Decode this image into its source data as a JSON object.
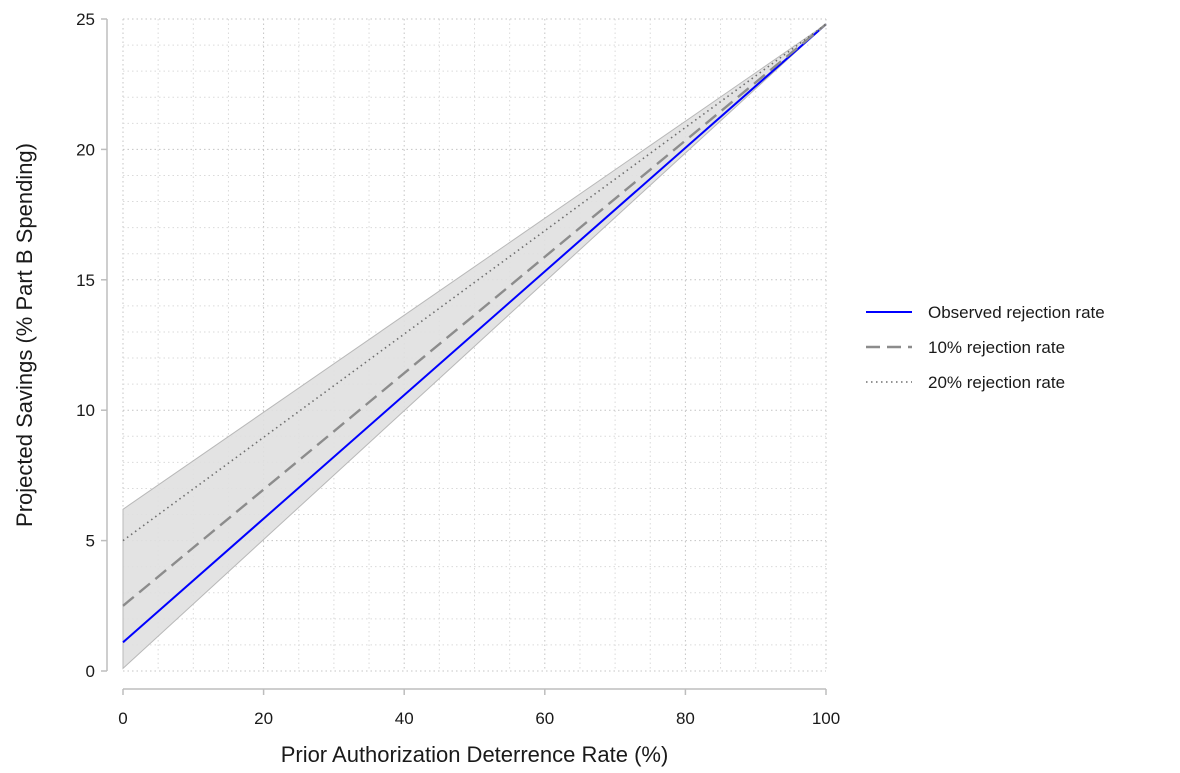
{
  "chart_data": {
    "type": "line",
    "title": "",
    "xlabel": "Prior Authorization Deterrence Rate (%)",
    "ylabel": "Projected Savings (% Part B Spending)",
    "xlim": [
      0,
      100
    ],
    "ylim": [
      0,
      25
    ],
    "xticks": [
      0,
      20,
      40,
      60,
      80,
      100
    ],
    "yticks": [
      0,
      5,
      10,
      15,
      20,
      25
    ],
    "x_tick_labels": [
      "0",
      "20",
      "40",
      "60",
      "80",
      "100"
    ],
    "y_tick_labels": [
      "0",
      "5",
      "10",
      "15",
      "20",
      "25"
    ],
    "grid": true,
    "legend_position": "right",
    "series": [
      {
        "name": "Observed rejection rate",
        "color": "#0000ff",
        "style": "solid",
        "x": [
          0,
          100
        ],
        "y": [
          1.1,
          24.8
        ]
      },
      {
        "name": "10% rejection rate",
        "color": "#8c8c8c",
        "style": "dashed",
        "x": [
          0,
          100
        ],
        "y": [
          2.5,
          24.8
        ]
      },
      {
        "name": "20% rejection rate",
        "color": "#6e6e6e",
        "style": "dotted",
        "x": [
          0,
          100
        ],
        "y": [
          5.0,
          24.8
        ]
      }
    ],
    "band": {
      "color": "#e0e0e0",
      "x": [
        0,
        100
      ],
      "lower": [
        0.1,
        24.8
      ],
      "upper": [
        6.2,
        24.8
      ]
    }
  }
}
